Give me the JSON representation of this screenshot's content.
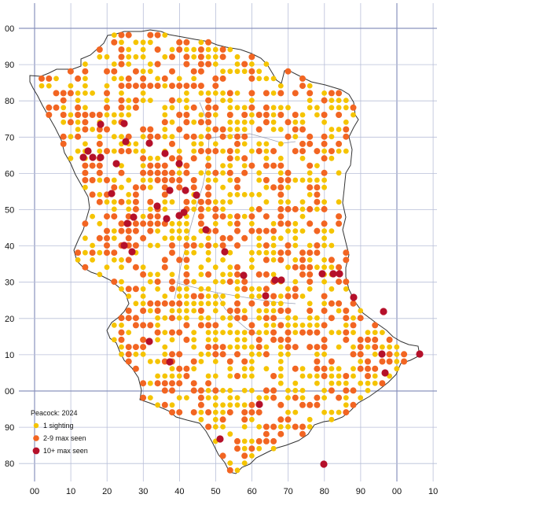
{
  "legend": {
    "title": "Peacock:  2024",
    "items": [
      {
        "label": "1 sighting",
        "color": "#f5c400",
        "size": "small"
      },
      {
        "label": "2-9 max seen",
        "color": "#f26522",
        "size": "medium"
      },
      {
        "label": "10+ max seen",
        "color": "#b5102a",
        "size": "large"
      }
    ]
  },
  "axes": {
    "x_labels": [
      "00",
      "10",
      "20",
      "30",
      "40",
      "50",
      "60",
      "70",
      "80",
      "90",
      "00",
      "10"
    ],
    "y_labels": [
      "00",
      "90",
      "80",
      "70",
      "60",
      "50",
      "40",
      "30",
      "20",
      "10",
      "00",
      "90",
      "80"
    ]
  },
  "colors": {
    "one": "#f5c400",
    "few": "#f26522",
    "many": "#b5102a",
    "grid": "#b8bfd8",
    "grid_major": "#8a93bd",
    "boundary": "#333333"
  }
}
